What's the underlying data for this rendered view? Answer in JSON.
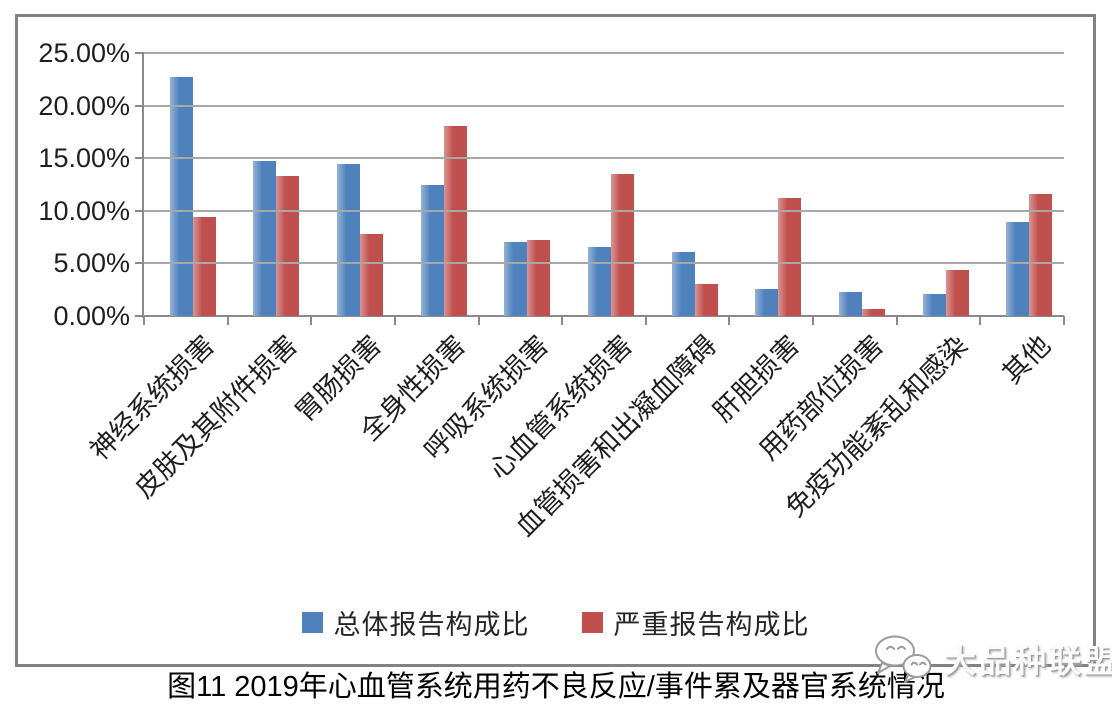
{
  "title": "图11 2019年心血管系统用药不良反应/事件累及器官系统情况",
  "watermark": {
    "text": "大品种联盟",
    "icon": "chat-bubbles-smiley-icon"
  },
  "colors": {
    "series1": "#4F81BD",
    "series1_light": "#95B3D7",
    "series2": "#C0504D",
    "series2_light": "#D99694",
    "gridline": "#A8A8A8",
    "axis": "#8A8A8A",
    "frame": "#828282",
    "text": "#1F1F1F"
  },
  "chart_data": {
    "type": "bar",
    "categories": [
      "神经系统损害",
      "皮肤及其附件损害",
      "胃肠损害",
      "全身性损害",
      "呼吸系统损害",
      "心血管系统损害",
      "血管损害和出凝血障碍",
      "肝胆损害",
      "用药部位损害",
      "免疫功能紊乱和感染",
      "其他"
    ],
    "series": [
      {
        "name": "总体报告构成比",
        "color": "#4F81BD",
        "light": "#95B3D7",
        "values": [
          22.7,
          14.7,
          14.5,
          12.5,
          7.0,
          6.6,
          6.1,
          2.6,
          2.3,
          2.1,
          8.9
        ]
      },
      {
        "name": "严重报告构成比",
        "color": "#C0504D",
        "light": "#D99694",
        "values": [
          9.4,
          13.3,
          7.8,
          18.1,
          7.2,
          13.5,
          3.0,
          11.2,
          0.7,
          4.4,
          11.6
        ]
      }
    ],
    "title": "",
    "xlabel": "",
    "ylabel": "",
    "ylim": [
      0,
      25
    ],
    "ytick_step": 5,
    "yticks": [
      "25.00%",
      "20.00%",
      "15.00%",
      "10.00%",
      "5.00%",
      "0.00%"
    ],
    "grid": true,
    "legend_position": "bottom",
    "x_label_rotation": -45
  }
}
